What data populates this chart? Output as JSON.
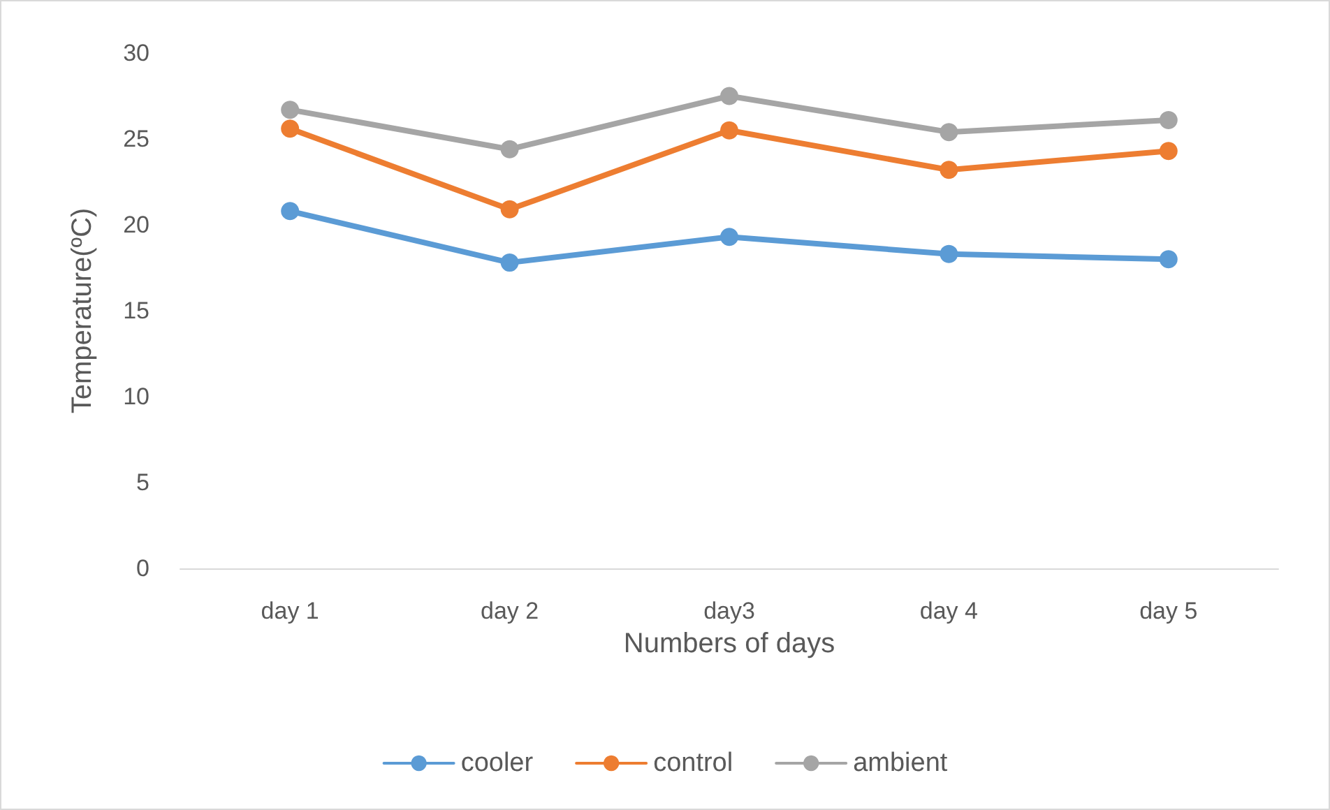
{
  "chart_data": {
    "type": "line",
    "xlabel": "Numbers of days",
    "ylabel": "Temperature(ºC)",
    "categories": [
      "day 1",
      "day 2",
      "day3",
      "day 4",
      "day 5"
    ],
    "series": [
      {
        "name": "cooler",
        "color": "#5b9bd5",
        "values": [
          20.8,
          17.8,
          19.3,
          18.3,
          18.0
        ]
      },
      {
        "name": "control",
        "color": "#ed7d31",
        "values": [
          25.6,
          20.9,
          25.5,
          23.2,
          24.3
        ]
      },
      {
        "name": "ambient",
        "color": "#a5a5a5",
        "values": [
          26.7,
          24.4,
          27.5,
          25.4,
          26.1
        ]
      }
    ],
    "ylim": [
      0,
      30
    ],
    "yticks": [
      0,
      5,
      10,
      15,
      20,
      25,
      30
    ],
    "grid": false,
    "legend": "bottom",
    "marker": "circle",
    "line_style": "solid"
  }
}
